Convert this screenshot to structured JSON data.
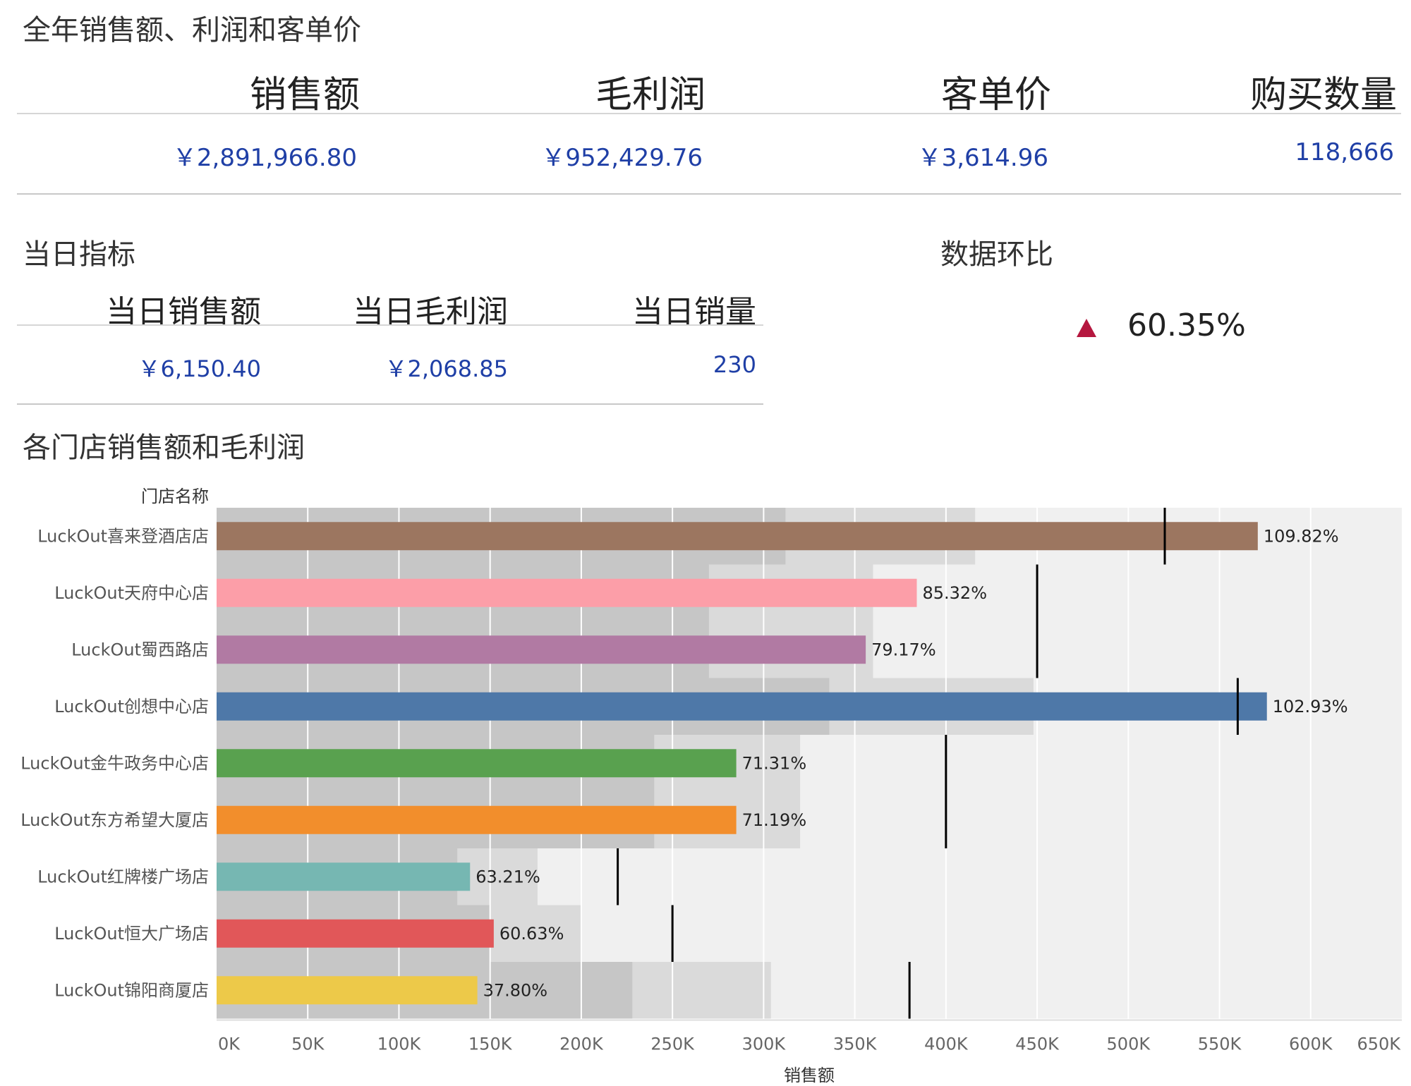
{
  "annual": {
    "title": "全年销售额、利润和客单价",
    "kpis": [
      {
        "label": "销售额",
        "value": "￥2,891,966.80"
      },
      {
        "label": "毛利润",
        "value": "￥952,429.76"
      },
      {
        "label": "客单价",
        "value": "￥3,614.96"
      },
      {
        "label": "购买数量",
        "value": "118,666"
      }
    ]
  },
  "daily": {
    "title": "当日指标",
    "kpis": [
      {
        "label": "当日销售额",
        "value": "￥6,150.40"
      },
      {
        "label": "当日毛利润",
        "value": "￥2,068.85"
      },
      {
        "label": "当日销量",
        "value": "230"
      }
    ]
  },
  "ratio": {
    "title": "数据环比",
    "value": "60.35%",
    "direction": "up",
    "arrow_color": "#b5173f"
  },
  "chart_data": {
    "type": "bar",
    "title": "各门店销售额和毛利润",
    "ylabel": "门店名称",
    "xlabel": "销售额",
    "xlim": [
      0,
      650000
    ],
    "x_ticks": [
      {
        "value": 0,
        "label": "0K"
      },
      {
        "value": 50000,
        "label": "50K"
      },
      {
        "value": 100000,
        "label": "100K"
      },
      {
        "value": 150000,
        "label": "150K"
      },
      {
        "value": 200000,
        "label": "200K"
      },
      {
        "value": 250000,
        "label": "250K"
      },
      {
        "value": 300000,
        "label": "300K"
      },
      {
        "value": 350000,
        "label": "350K"
      },
      {
        "value": 400000,
        "label": "400K"
      },
      {
        "value": 450000,
        "label": "450K"
      },
      {
        "value": 500000,
        "label": "500K"
      },
      {
        "value": 550000,
        "label": "550K"
      },
      {
        "value": 600000,
        "label": "600K"
      },
      {
        "value": 650000,
        "label": "650K"
      }
    ],
    "grid": true,
    "background_color": "#f0f0f0",
    "band_colors": [
      "#c6c6c6",
      "#dadada"
    ],
    "stores": [
      {
        "name": "LuckOut喜来登酒店店",
        "sales": 571000,
        "target": 520000,
        "label": "109.82%",
        "color": "#9c7660",
        "band1": 312000,
        "band2": 416000
      },
      {
        "name": "LuckOut天府中心店",
        "sales": 384000,
        "target": 450000,
        "label": "85.32%",
        "color": "#fc9ea8",
        "band1": 270000,
        "band2": 360000
      },
      {
        "name": "LuckOut蜀西路店",
        "sales": 356000,
        "target": 450000,
        "label": "79.17%",
        "color": "#b17aa3",
        "band1": 270000,
        "band2": 360000
      },
      {
        "name": "LuckOut创想中心店",
        "sales": 576000,
        "target": 560000,
        "label": "102.93%",
        "color": "#4e78a8",
        "band1": 336000,
        "band2": 448000
      },
      {
        "name": "LuckOut金牛政务中心店",
        "sales": 285000,
        "target": 400000,
        "label": "71.31%",
        "color": "#59a14f",
        "band1": 240000,
        "band2": 320000
      },
      {
        "name": "LuckOut东方希望大厦店",
        "sales": 285000,
        "target": 400000,
        "label": "71.19%",
        "color": "#f28e2c",
        "band1": 240000,
        "band2": 320000
      },
      {
        "name": "LuckOut红牌楼广场店",
        "sales": 139000,
        "target": 220000,
        "label": "63.21%",
        "color": "#76b7b2",
        "band1": 132000,
        "band2": 176000
      },
      {
        "name": "LuckOut恒大广场店",
        "sales": 152000,
        "target": 250000,
        "label": "60.63%",
        "color": "#e15759",
        "band1": 150000,
        "band2": 200000
      },
      {
        "name": "LuckOut锦阳商厦店",
        "sales": 143000,
        "target": 380000,
        "label": "37.80%",
        "color": "#edc949",
        "band1": 228000,
        "band2": 304000
      }
    ]
  }
}
